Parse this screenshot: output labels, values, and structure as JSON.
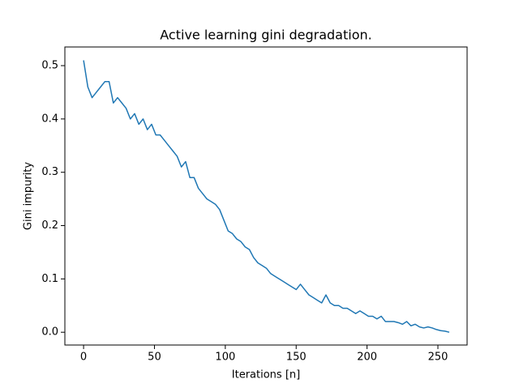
{
  "chart_data": {
    "type": "line",
    "title": "Active learning gini degradation.",
    "xlabel": "Iterations [n]",
    "ylabel": "Gini impurity",
    "color": "#1f77b4",
    "x": [
      0,
      3,
      6,
      9,
      12,
      15,
      18,
      21,
      24,
      27,
      30,
      33,
      36,
      39,
      42,
      45,
      48,
      51,
      54,
      57,
      60,
      63,
      66,
      69,
      72,
      75,
      78,
      81,
      84,
      87,
      90,
      93,
      96,
      99,
      102,
      105,
      108,
      111,
      114,
      117,
      120,
      123,
      126,
      129,
      132,
      135,
      138,
      141,
      144,
      147,
      150,
      153,
      156,
      159,
      162,
      165,
      168,
      171,
      174,
      177,
      180,
      183,
      186,
      189,
      192,
      195,
      198,
      201,
      204,
      207,
      210,
      213,
      216,
      219,
      222,
      225,
      228,
      231,
      234,
      237,
      240,
      243,
      246,
      249,
      252,
      255,
      258
    ],
    "values": [
      0.51,
      0.46,
      0.44,
      0.45,
      0.46,
      0.47,
      0.47,
      0.43,
      0.44,
      0.43,
      0.42,
      0.4,
      0.41,
      0.39,
      0.4,
      0.38,
      0.39,
      0.37,
      0.37,
      0.36,
      0.35,
      0.34,
      0.33,
      0.31,
      0.32,
      0.29,
      0.29,
      0.27,
      0.26,
      0.25,
      0.245,
      0.24,
      0.23,
      0.21,
      0.19,
      0.185,
      0.175,
      0.17,
      0.16,
      0.155,
      0.14,
      0.13,
      0.125,
      0.12,
      0.11,
      0.105,
      0.1,
      0.095,
      0.09,
      0.085,
      0.08,
      0.09,
      0.08,
      0.07,
      0.065,
      0.06,
      0.055,
      0.07,
      0.055,
      0.05,
      0.05,
      0.045,
      0.045,
      0.04,
      0.035,
      0.04,
      0.035,
      0.03,
      0.03,
      0.025,
      0.03,
      0.02,
      0.02,
      0.02,
      0.018,
      0.015,
      0.02,
      0.012,
      0.015,
      0.01,
      0.008,
      0.01,
      0.008,
      0.005,
      0.003,
      0.002,
      0.0
    ],
    "xlim": [
      -13.2,
      270.6
    ],
    "ylim": [
      -0.024,
      0.535
    ],
    "xticks": [
      0,
      50,
      100,
      150,
      200,
      250
    ],
    "yticks": [
      {
        "value": 0,
        "label": "0.0"
      },
      0.1,
      0.2,
      0.3,
      0.4,
      0.5
    ]
  }
}
